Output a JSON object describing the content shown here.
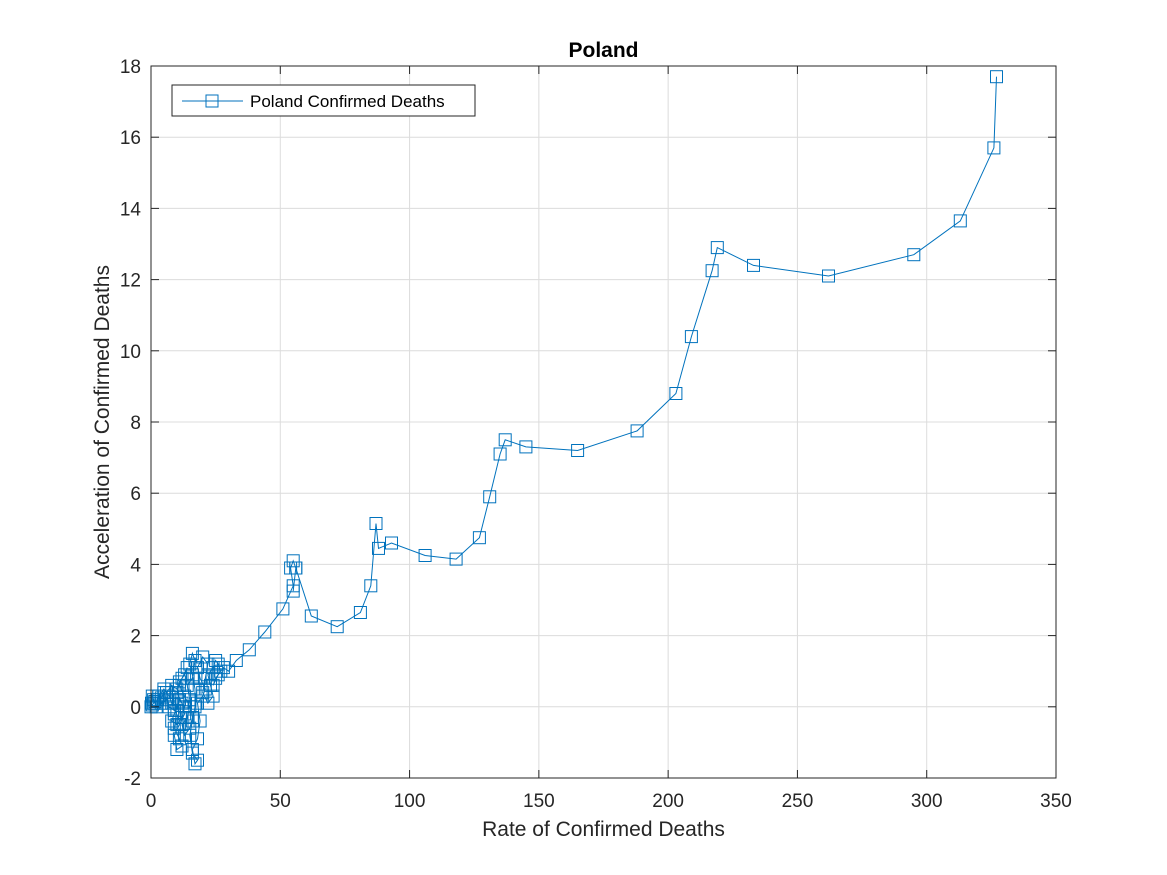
{
  "chart_data": {
    "type": "line",
    "title": "Poland",
    "xlabel": "Rate of Confirmed Deaths",
    "ylabel": "Acceleration of Confirmed Deaths",
    "xlim": [
      0,
      350
    ],
    "ylim": [
      -2,
      18
    ],
    "xticks": [
      0,
      50,
      100,
      150,
      200,
      250,
      300,
      350
    ],
    "yticks": [
      -2,
      0,
      2,
      4,
      6,
      8,
      10,
      12,
      14,
      16,
      18
    ],
    "xtick_labels": [
      "0",
      "50",
      "100",
      "150",
      "200",
      "250",
      "300",
      "350"
    ],
    "ytick_labels": [
      "-2",
      "0",
      "2",
      "4",
      "6",
      "8",
      "10",
      "12",
      "14",
      "16",
      "18"
    ],
    "grid": true,
    "legend_position": "top-left",
    "marker": "square",
    "series": [
      {
        "name": "Poland Confirmed Deaths",
        "color": "#0072BD",
        "x": [
          0,
          0.2,
          0.5,
          1,
          1.5,
          2,
          1,
          0.5,
          1.5,
          2.5,
          3,
          4,
          5,
          6,
          4,
          3,
          5,
          7,
          8,
          9,
          7,
          6,
          8,
          10,
          11,
          9,
          8,
          10,
          12,
          13,
          11,
          10,
          9,
          11,
          12,
          10,
          9,
          11,
          13,
          12,
          10,
          11,
          13,
          14,
          12,
          11,
          13,
          15,
          14,
          12,
          13,
          15,
          16,
          15,
          14,
          16,
          17,
          16,
          15,
          16,
          17,
          17,
          16,
          15,
          16,
          18,
          17,
          16,
          18,
          19,
          18,
          20,
          21,
          19,
          18,
          20,
          22,
          21,
          20,
          22,
          24,
          23,
          22,
          24,
          25,
          26,
          27,
          25,
          24,
          26,
          28,
          30,
          33,
          38,
          44,
          51,
          55,
          54,
          55,
          56,
          55,
          56,
          62,
          72,
          81,
          85,
          87,
          87,
          88,
          93,
          106,
          118,
          127,
          131,
          135,
          137,
          145,
          165,
          188,
          203,
          209,
          217,
          219,
          233,
          262,
          295,
          313,
          326,
          327
        ],
        "y": [
          0,
          0.1,
          0.05,
          0.1,
          0.15,
          0,
          0.2,
          0.3,
          0.1,
          0.2,
          0.3,
          0.25,
          0.4,
          0.2,
          0.1,
          0.3,
          0.5,
          0.3,
          0.1,
          -0.1,
          0,
          0.4,
          0.6,
          0.5,
          0.2,
          -0.2,
          -0.4,
          -0.5,
          -0.3,
          0,
          0.2,
          -0.1,
          -0.6,
          -0.9,
          -1.1,
          -1.2,
          -0.8,
          -0.5,
          -0.2,
          0.1,
          0.4,
          0.7,
          0.9,
          1.1,
          0.8,
          0.6,
          0.3,
          0,
          -0.3,
          -0.5,
          -0.8,
          -0.6,
          -0.3,
          0.2,
          0.6,
          0.8,
          1.3,
          1.5,
          1.2,
          0.9,
          0.5,
          0,
          -0.4,
          -0.8,
          -1.3,
          -1.5,
          -1.6,
          -1.2,
          -0.9,
          -0.4,
          0.1,
          0.3,
          0.5,
          0.8,
          1.1,
          1.4,
          1.2,
          0.8,
          0.4,
          0.1,
          0.3,
          0.6,
          0.9,
          1.1,
          1.3,
          1.2,
          1.0,
          0.8,
          0.6,
          0.9,
          1.1,
          1.0,
          1.3,
          1.6,
          2.1,
          2.75,
          3.4,
          3.9,
          4.1,
          3.9,
          3.25,
          3.9,
          2.55,
          2.25,
          2.65,
          3.4,
          5.15,
          5.15,
          4.45,
          4.6,
          4.25,
          4.15,
          4.75,
          5.9,
          7.1,
          7.5,
          7.3,
          7.2,
          7.75,
          8.8,
          10.4,
          12.25,
          12.9,
          12.4,
          12.1,
          12.7,
          13.65,
          15.7,
          17.7
        ]
      }
    ]
  }
}
